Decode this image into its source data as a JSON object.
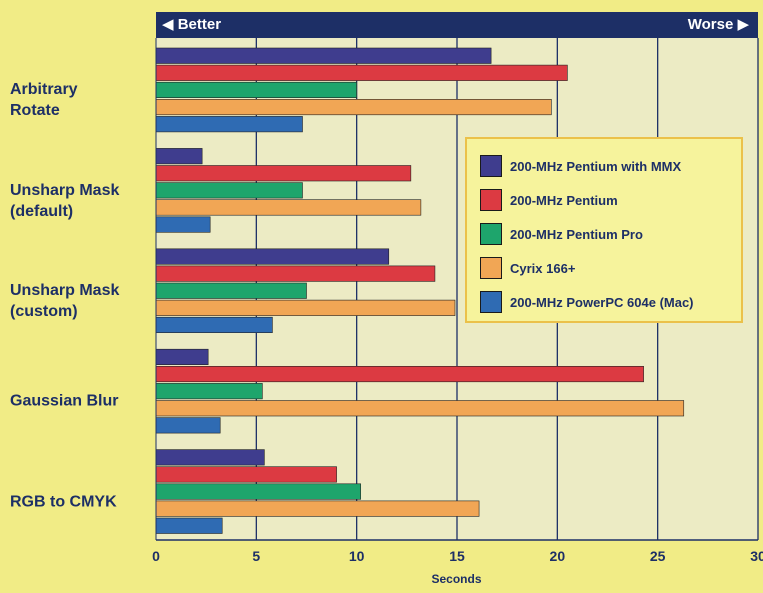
{
  "chart_data": {
    "type": "bar",
    "orientation": "horizontal",
    "categories": [
      [
        "Arbitrary",
        "Rotate"
      ],
      [
        "Unsharp Mask",
        "(default)"
      ],
      [
        "Unsharp Mask",
        "(custom)"
      ],
      [
        "Gaussian Blur"
      ],
      [
        "RGB to CMYK"
      ]
    ],
    "series": [
      {
        "name": "200-MHz Pentium with MMX",
        "color": "#3f3d8e",
        "values": [
          16.7,
          2.3,
          11.6,
          2.6,
          5.4
        ]
      },
      {
        "name": "200-MHz Pentium",
        "color": "#dc3a42",
        "values": [
          20.5,
          12.7,
          13.9,
          24.3,
          9.0
        ]
      },
      {
        "name": "200-MHz Pentium Pro",
        "color": "#1ea56c",
        "values": [
          10.0,
          7.3,
          7.5,
          5.3,
          10.2
        ]
      },
      {
        "name": "Cyrix 166+",
        "color": "#f1a655",
        "values": [
          19.7,
          13.2,
          14.9,
          26.3,
          16.1
        ]
      },
      {
        "name": "200-MHz PowerPC 604e (Mac)",
        "color": "#2f6bb3",
        "values": [
          7.3,
          2.7,
          5.8,
          3.2,
          3.3
        ]
      }
    ],
    "xlabel": "Seconds",
    "xlim": [
      0,
      30
    ],
    "xticks": [
      0,
      5,
      10,
      15,
      20,
      25,
      30
    ],
    "header_left": "◀ Better",
    "header_right": "Worse ▶",
    "legend_position": "right-middle",
    "colors": {
      "background": "#f1ec86",
      "plot_area": "#ecebc4",
      "header_bar": "#1d2f66",
      "grid": "#1d2f66",
      "text": "#1d2f66",
      "legend_bg": "#f6f39c",
      "legend_border": "#ebc14a"
    }
  }
}
